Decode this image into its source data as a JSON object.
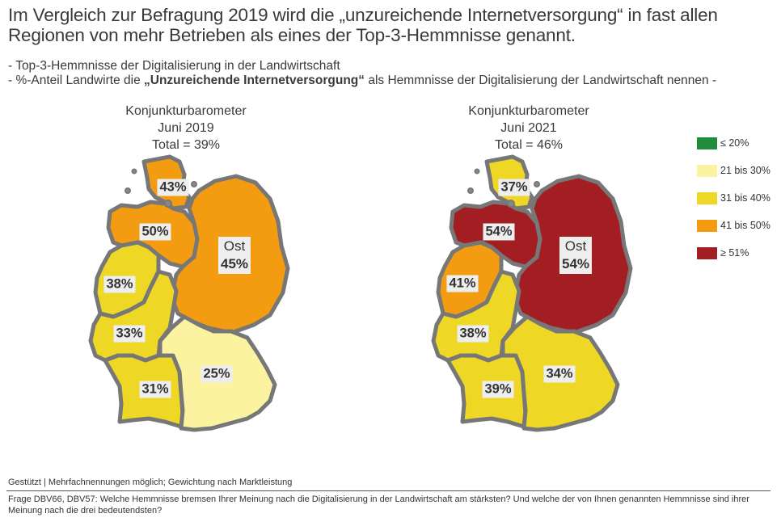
{
  "title": "Im Vergleich zur Befragung 2019 wird die „unzureichende Internetversorgung“ in fast allen Regionen von mehr Betrieben als eines der Top-3-Hemmnisse genannt.",
  "subtitle_line1": "- Top-3-Hemmnisse der Digitalisierung in der Landwirtschaft",
  "subtitle_line2_pre": "- %-Anteil Landwirte die ",
  "subtitle_line2_bold": "„Unzureichende Internetversorgung“",
  "subtitle_line2_post": " als Hemmnisse der Digitalisierung der Landwirtschaft nennen -",
  "maps": [
    {
      "title_line1": "Konjunkturbarometer",
      "title_line2": "Juni 2019",
      "title_line3": "Total = 39%",
      "regions": {
        "nord": {
          "value": "43%",
          "color": "#f39c12"
        },
        "nordwest": {
          "value": "50%",
          "color": "#f39c12"
        },
        "ost": {
          "name": "Ost",
          "value": "45%",
          "color": "#f39c12"
        },
        "west": {
          "value": "38%",
          "color": "#eed725"
        },
        "mitte": {
          "value": "33%",
          "color": "#eed725"
        },
        "suedwest": {
          "value": "31%",
          "color": "#eed725"
        },
        "bayern": {
          "value": "25%",
          "color": "#fcf3a1"
        }
      }
    },
    {
      "title_line1": "Konjunkturbarometer",
      "title_line2": "Juni 2021",
      "title_line3": "Total = 46%",
      "regions": {
        "nord": {
          "value": "37%",
          "color": "#eed725"
        },
        "nordwest": {
          "value": "54%",
          "color": "#a31e23"
        },
        "ost": {
          "name": "Ost",
          "value": "54%",
          "color": "#a31e23"
        },
        "west": {
          "value": "41%",
          "color": "#f39c12"
        },
        "mitte": {
          "value": "38%",
          "color": "#eed725"
        },
        "suedwest": {
          "value": "39%",
          "color": "#eed725"
        },
        "bayern": {
          "value": "34%",
          "color": "#eed725"
        }
      }
    }
  ],
  "legend": [
    {
      "label": "≤ 20%",
      "color": "#1e8c3a"
    },
    {
      "label": "21 bis 30%",
      "color": "#fcf3a1"
    },
    {
      "label": "31 bis 40%",
      "color": "#eed725"
    },
    {
      "label": "41 bis 50%",
      "color": "#f39c12"
    },
    {
      "label": "≥ 51%",
      "color": "#a31e23"
    }
  ],
  "footnote_basis": "Gestützt | Mehrfachnennungen möglich; Gewichtung nach Marktleistung",
  "footnote_question": "Frage DBV66, DBV57: Welche Hemmnisse bremsen Ihrer Meinung nach die Digitalisierung in der Landwirtschaft am stärksten? Und welche der von Ihnen genannten Hemmnisse sind ihrer Meinung nach die drei bedeutendsten?"
}
